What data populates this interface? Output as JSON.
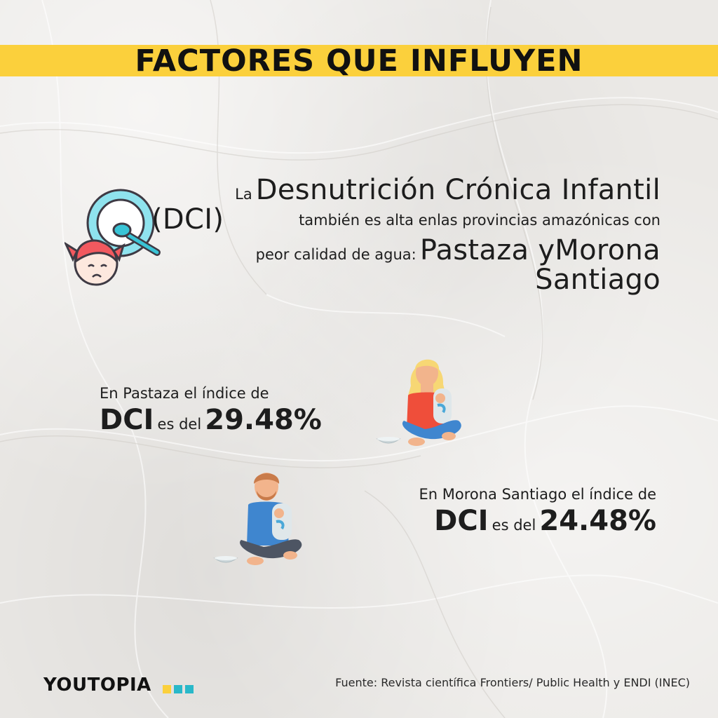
{
  "title": "FACTORES QUE INFLUYEN",
  "main": {
    "la": "La",
    "dci_full": "Desnutrición Crónica Infantil",
    "dci_abbr": "(DCI)",
    "text_1": "también es alta enlas provincias amazónicas con",
    "text_2": "peor calidad de agua:",
    "provinces_1": "Pastaza yMorona",
    "provinces_2": "Santiago"
  },
  "stats": [
    {
      "caption": "En Pastaza el índice de",
      "label": "DCI",
      "connector": "es del",
      "value": "29.48%"
    },
    {
      "caption": "En Morona Santiago el índice de",
      "label": "DCI",
      "connector": "es del",
      "value": "24.48%"
    }
  ],
  "brand": "YOUTOPIA",
  "brand_dot_colors": [
    "#fbd03c",
    "#29b8c9",
    "#29b8c9"
  ],
  "source": "Fuente: Revista científica Frontiers/ Public Health y ENDI (INEC)",
  "colors": {
    "accent_yellow": "#fbd03c",
    "accent_cyan": "#29b8c9",
    "background": "#ebe9e6",
    "text": "#1d1d1d"
  },
  "icons": [
    "child-plate-icon",
    "woman-begging-icon",
    "man-begging-icon"
  ]
}
